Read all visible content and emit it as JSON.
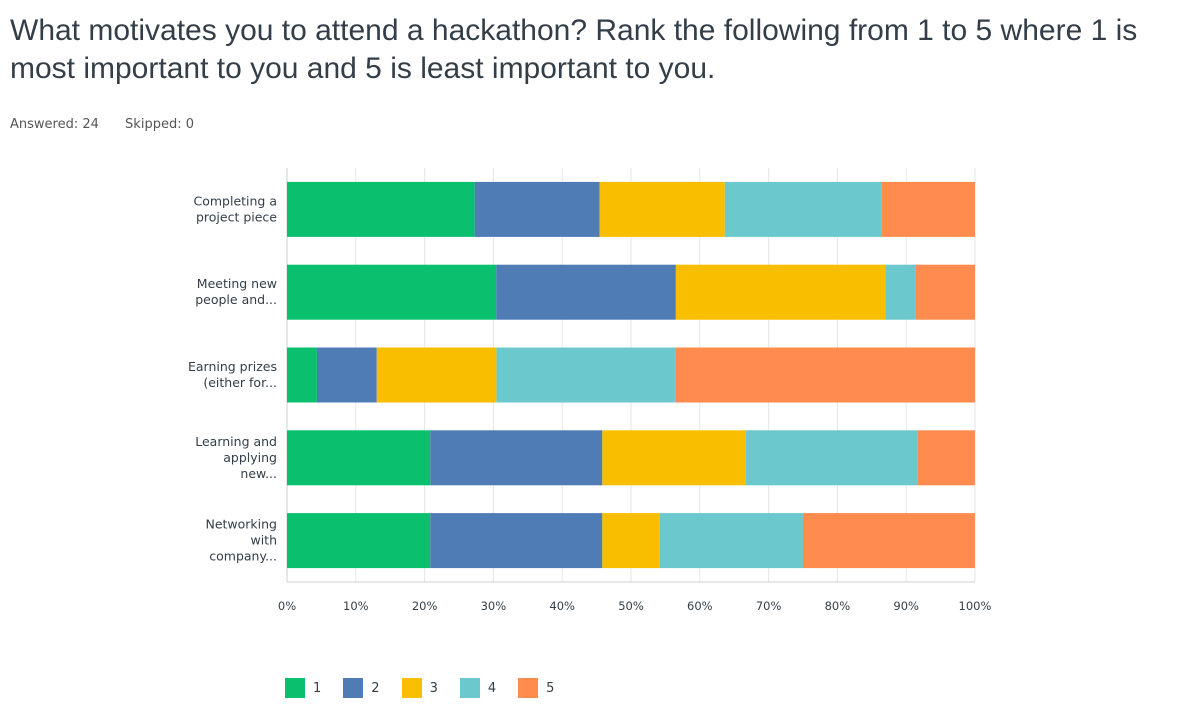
{
  "question": {
    "title": "What motivates you to attend a hackathon? Rank the following from 1 to 5 where 1 is most important to you and 5 is least important to you.",
    "answered": "Answered: 24",
    "skipped": "Skipped: 0"
  },
  "chart_data": {
    "type": "bar",
    "orientation": "horizontal",
    "stacked": true,
    "categories": [
      [
        "Completing a",
        "project piece"
      ],
      [
        "Meeting new",
        "people and..."
      ],
      [
        "Earning prizes",
        "(either for..."
      ],
      [
        "Learning and",
        "applying",
        "new..."
      ],
      [
        "Networking",
        "with",
        "company..."
      ]
    ],
    "series": [
      {
        "name": "1",
        "color": "#0abf6e",
        "values": [
          27.27,
          30.43,
          4.35,
          20.83,
          20.83
        ]
      },
      {
        "name": "2",
        "color": "#507cb6",
        "values": [
          18.18,
          26.09,
          8.7,
          25.0,
          25.0
        ]
      },
      {
        "name": "3",
        "color": "#f9be00",
        "values": [
          18.18,
          30.43,
          17.39,
          20.83,
          8.33
        ]
      },
      {
        "name": "4",
        "color": "#6bc8cd",
        "values": [
          22.73,
          4.35,
          26.09,
          25.0,
          20.83
        ]
      },
      {
        "name": "5",
        "color": "#ff8b4f",
        "values": [
          13.64,
          8.7,
          43.48,
          8.33,
          25.0
        ]
      }
    ],
    "x_ticks": [
      "0%",
      "10%",
      "20%",
      "30%",
      "40%",
      "50%",
      "60%",
      "70%",
      "80%",
      "90%",
      "100%"
    ],
    "xlim": [
      0,
      100
    ],
    "grid": true,
    "legend_position": "bottom"
  }
}
